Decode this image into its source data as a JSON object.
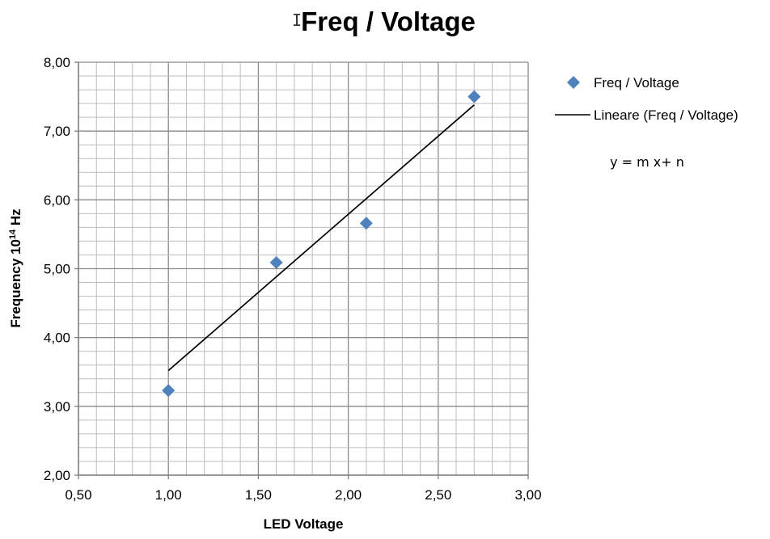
{
  "chart_data": {
    "type": "scatter",
    "title": "Freq / Voltage",
    "xlabel": "LED Voltage",
    "ylabel_base": "Frequency 10",
    "ylabel_sup": "14",
    "ylabel_unit": " Hz",
    "xlim": [
      0.5,
      3.0
    ],
    "ylim": [
      2.0,
      8.0
    ],
    "x_ticks": [
      0.5,
      1.0,
      1.5,
      2.0,
      2.5,
      3.0
    ],
    "x_tick_labels": [
      "0,50",
      "1,00",
      "1,50",
      "2,00",
      "2,50",
      "3,00"
    ],
    "y_ticks": [
      2,
      3,
      4,
      5,
      6,
      7,
      8
    ],
    "y_tick_labels": [
      "2,00",
      "3,00",
      "4,00",
      "5,00",
      "6,00",
      "7,00",
      "8,00"
    ],
    "minor_grid_x_step": 0.1,
    "minor_grid_y_step": 0.2,
    "grid": true,
    "series": [
      {
        "name": "Freq / Voltage",
        "kind": "scatter",
        "marker": "diamond",
        "color": "#4f81bd",
        "x": [
          1.0,
          1.6,
          2.1,
          2.7
        ],
        "y": [
          3.23,
          5.09,
          5.66,
          7.5
        ]
      },
      {
        "name": "Lineare (Freq / Voltage)",
        "kind": "trendline",
        "color": "#000000",
        "x": [
          1.0,
          2.7
        ],
        "y": [
          3.52,
          7.38
        ]
      }
    ],
    "legend_position": "right",
    "annotation": "y = m x+ n"
  },
  "cursor_glyph": "I"
}
